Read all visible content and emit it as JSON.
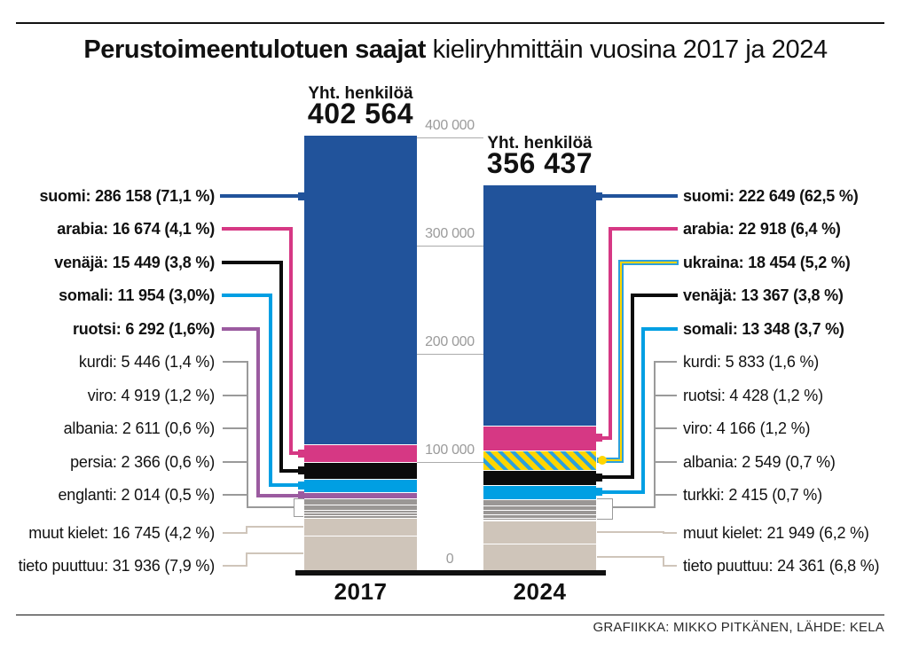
{
  "title": {
    "bold": "Perustoimeentulotuen saajat",
    "regular": " kieliryhmittäin vuosina 2017 ja 2024"
  },
  "footer": {
    "credit": "GRAFIIKKA: MIKKO PITKÄNEN, LÄHDE: KELA"
  },
  "palette": {
    "suomi": "#21539B",
    "arabia": "#D63884",
    "venaja": "#0B0B0B",
    "somali": "#009FE3",
    "ruotsi": "#9B5BA0",
    "gray": "#9A9795",
    "beige": "#CFC5BA",
    "ukraina_yellow": "#FFD500",
    "ukraina_blue": "#2DA0DB",
    "grid": "#ABABAB",
    "axis": "#111111"
  },
  "chart_data": {
    "type": "bar",
    "stacked": true,
    "title": "Perustoimeentulotuen saajat kieliryhmittäin vuosina 2017 ja 2024",
    "categories": [
      "2017",
      "2024"
    ],
    "legend_position": "sides",
    "grid": "partial-gap-only",
    "y_axis": {
      "max": 400000,
      "ticks": [
        {
          "label": "400 000",
          "value": 400000
        },
        {
          "label": "300 000",
          "value": 300000
        },
        {
          "label": "200 000",
          "value": 200000
        },
        {
          "label": "100 000",
          "value": 100000
        },
        {
          "label": "0",
          "value": 0
        }
      ]
    },
    "bars": [
      {
        "year": "2017",
        "total_label": "Yht. henkilöä",
        "total_text": "402 564",
        "total": 402564,
        "segments": [
          {
            "lang": "suomi",
            "value": 286158,
            "label": "suomi: 286 158 (71,1 %)",
            "color": "#21539B",
            "bold": true
          },
          {
            "lang": "arabia",
            "value": 16674,
            "label": "arabia: 16 674 (4,1 %)",
            "color": "#D63884",
            "bold": true
          },
          {
            "lang": "venäjä",
            "value": 15449,
            "label": "venäjä: 15 449 (3,8 %)",
            "color": "#0B0B0B",
            "bold": true
          },
          {
            "lang": "somali",
            "value": 11954,
            "label": "somali: 11 954 (3,0%)",
            "color": "#009FE3",
            "bold": true
          },
          {
            "lang": "ruotsi",
            "value": 6292,
            "label": "ruotsi: 6 292 (1,6%)",
            "color": "#9B5BA0",
            "bold": true
          },
          {
            "lang": "kurdi",
            "value": 5446,
            "label": "kurdi: 5 446 (1,4 %)",
            "color": "#9A9795",
            "bold": false
          },
          {
            "lang": "viro",
            "value": 4919,
            "label": "viro: 4 919 (1,2 %)",
            "color": "#9A9795",
            "bold": false
          },
          {
            "lang": "albania",
            "value": 2611,
            "label": "albania: 2 611 (0,6 %)",
            "color": "#9A9795",
            "bold": false
          },
          {
            "lang": "persia",
            "value": 2366,
            "label": "persia: 2 366 (0,6 %)",
            "color": "#9A9795",
            "bold": false
          },
          {
            "lang": "englanti",
            "value": 2014,
            "label": "englanti: 2 014 (0,5 %)",
            "color": "#9A9795",
            "bold": false
          },
          {
            "lang": "muut kielet",
            "value": 16745,
            "label": "muut kielet: 16 745 (4,2 %)",
            "color": "#CFC5BA",
            "bold": false
          },
          {
            "lang": "tieto puuttuu",
            "value": 31936,
            "label": "tieto puuttuu: 31 936 (7,9 %)",
            "color": "#CFC5BA",
            "bold": false
          }
        ]
      },
      {
        "year": "2024",
        "total_label": "Yht. henkilöä",
        "total_text": "356 437",
        "total": 356437,
        "segments": [
          {
            "lang": "suomi",
            "value": 222649,
            "label": "suomi: 222 649 (62,5 %)",
            "color": "#21539B",
            "bold": true
          },
          {
            "lang": "arabia",
            "value": 22918,
            "label": "arabia: 22 918 (6,4 %)",
            "color": "#D63884",
            "bold": true
          },
          {
            "lang": "ukraina",
            "value": 18454,
            "label": "ukraina: 18 454 (5,2 %)",
            "color": "pattern",
            "bold": true
          },
          {
            "lang": "venäjä",
            "value": 13367,
            "label": "venäjä: 13 367 (3,8 %)",
            "color": "#0B0B0B",
            "bold": true
          },
          {
            "lang": "somali",
            "value": 13348,
            "label": "somali: 13 348 (3,7 %)",
            "color": "#009FE3",
            "bold": true
          },
          {
            "lang": "kurdi",
            "value": 5833,
            "label": "kurdi: 5 833 (1,6 %)",
            "color": "#9A9795",
            "bold": false
          },
          {
            "lang": "ruotsi",
            "value": 4428,
            "label": "ruotsi: 4 428 (1,2 %)",
            "color": "#9A9795",
            "bold": false
          },
          {
            "lang": "viro",
            "value": 4166,
            "label": "viro: 4 166 (1,2 %)",
            "color": "#9A9795",
            "bold": false
          },
          {
            "lang": "albania",
            "value": 2549,
            "label": "albania: 2 549 (0,7 %)",
            "color": "#9A9795",
            "bold": false
          },
          {
            "lang": "turkki",
            "value": 2415,
            "label": "turkki: 2 415 (0,7 %)",
            "color": "#9A9795",
            "bold": false
          },
          {
            "lang": "muut kielet",
            "value": 21949,
            "label": "muut kielet: 21 949 (6,2 %)",
            "color": "#CFC5BA",
            "bold": false
          },
          {
            "lang": "tieto puuttuu",
            "value": 24361,
            "label": "tieto puuttuu: 24 361 (6,8 %)",
            "color": "#CFC5BA",
            "bold": false
          }
        ]
      }
    ]
  }
}
